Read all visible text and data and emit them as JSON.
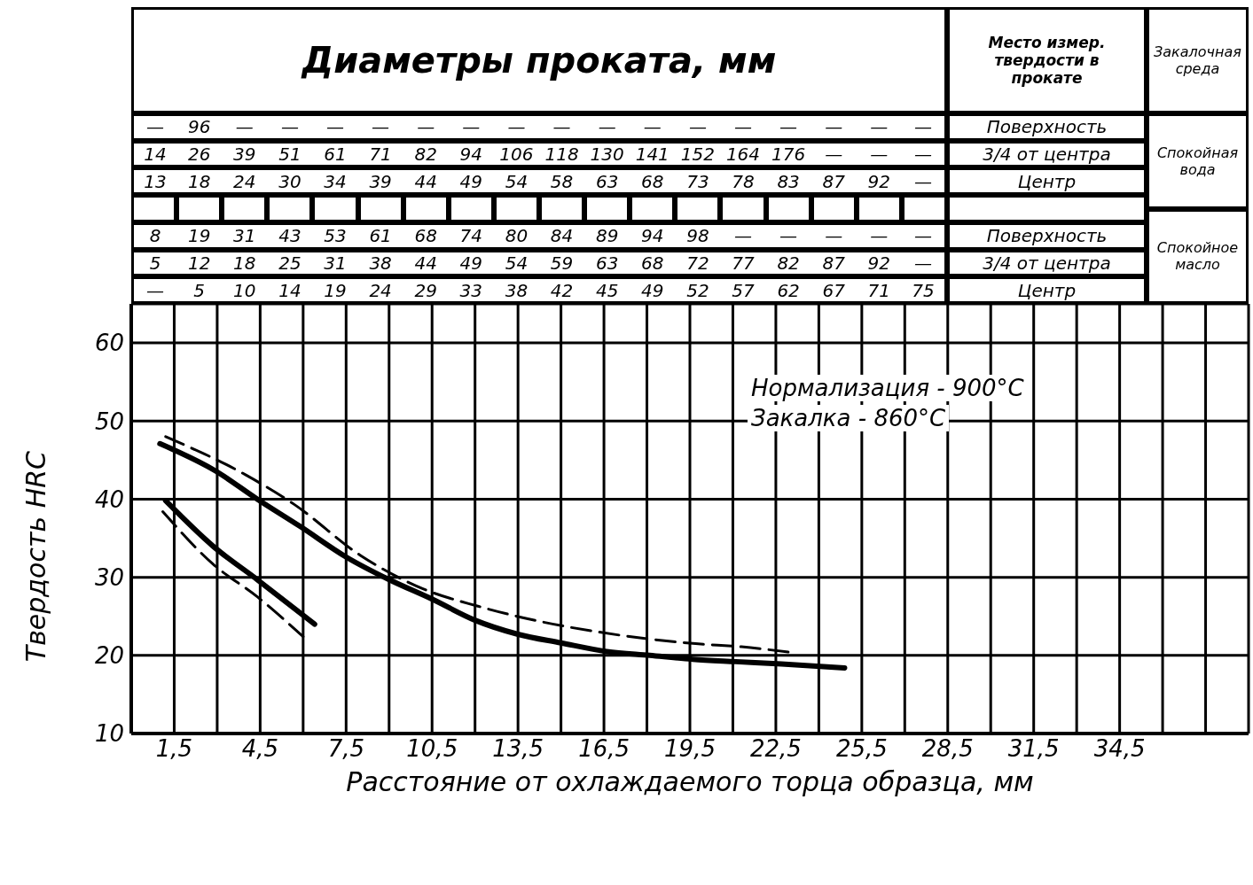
{
  "chart_data": {
    "type": "line",
    "xlabel": "Расстояние от охлаждаемого торца образца, мм",
    "ylabel": "Твердость HRC",
    "xlim": [
      0,
      39
    ],
    "ylim": [
      10,
      65
    ],
    "xticks": [
      {
        "value": 0,
        "label": null
      },
      {
        "value": 1.5,
        "label": "1,5"
      },
      {
        "value": 3,
        "label": null
      },
      {
        "value": 4.5,
        "label": "4,5"
      },
      {
        "value": 6,
        "label": null
      },
      {
        "value": 7.5,
        "label": "7,5"
      },
      {
        "value": 9,
        "label": null
      },
      {
        "value": 10.5,
        "label": "10,5"
      },
      {
        "value": 12,
        "label": null
      },
      {
        "value": 13.5,
        "label": "13,5"
      },
      {
        "value": 15,
        "label": null
      },
      {
        "value": 16.5,
        "label": "16,5"
      },
      {
        "value": 18,
        "label": null
      },
      {
        "value": 19.5,
        "label": "19,5"
      },
      {
        "value": 21,
        "label": null
      },
      {
        "value": 22.5,
        "label": "22,5"
      },
      {
        "value": 24,
        "label": null
      },
      {
        "value": 25.5,
        "label": "25,5"
      },
      {
        "value": 27,
        "label": null
      },
      {
        "value": 28.5,
        "label": "28,5"
      },
      {
        "value": 30,
        "label": null
      },
      {
        "value": 31.5,
        "label": "31,5"
      },
      {
        "value": 33,
        "label": null
      },
      {
        "value": 34.5,
        "label": "34,5"
      },
      {
        "value": 36,
        "label": null
      },
      {
        "value": 37.5,
        "label": null
      },
      {
        "value": 39,
        "label": null
      }
    ],
    "yticks": [
      10,
      20,
      30,
      40,
      50,
      60
    ],
    "grid": true,
    "legend": false,
    "marker": "none",
    "series": [
      {
        "color": "#000000",
        "line_style": "solid",
        "x": [
          1.0,
          2.95,
          4.4,
          5.9,
          7.5,
          9.0,
          10.5,
          12.0,
          13.5,
          15.0,
          16.6,
          18.1,
          19.6,
          21.1,
          22.7,
          24.9
        ],
        "values": [
          47.1,
          43.6,
          40.0,
          36.5,
          32.6,
          29.7,
          27.2,
          24.5,
          22.7,
          21.6,
          20.5,
          20.0,
          19.5,
          19.2,
          18.9,
          18.4
        ]
      },
      {
        "color": "#000000",
        "line_style": "dashed",
        "x": [
          1.2,
          4.0,
          5.7,
          8.0,
          10.2,
          12.1,
          14.2,
          16.3,
          19.7,
          21.3,
          23.2
        ],
        "values": [
          48.0,
          43.1,
          39.3,
          32.8,
          28.5,
          26.3,
          24.4,
          23.0,
          21.5,
          21.1,
          20.3
        ]
      },
      {
        "color": "#000000",
        "line_style": "solid",
        "x": [
          1.2,
          2.85,
          4.4,
          6.4
        ],
        "values": [
          39.8,
          34.0,
          29.7,
          24.0
        ]
      },
      {
        "color": "#000000",
        "line_style": "dashed",
        "x": [
          1.1,
          2.85,
          4.4,
          6.0
        ],
        "values": [
          38.4,
          31.7,
          27.5,
          22.4
        ]
      }
    ],
    "annotations": [
      "Диаметры проката, мм",
      "Место измер. твердости в прокате",
      "Закалочная среда",
      "— 96 — — — — — — — — — — — — — — — —",
      "14 26 39 51 61 71 82 94 106 118 130 141 152 164 176 — — —",
      "13 18 24 30 34 39 44 49 54 58 63 68 73 78 83 87 92 —",
      "8 19 31 43 53 61 68 74 80 84 89 94 98 — — — — —",
      "5 12 18 25 31 38 44 49 54 59 63 68 72 77 82 87 92 —",
      "— 5 10 14 19 24 29 33 38 42 45 49 52 57 62 67 71 75",
      "Поверхность",
      "3/4 от центра",
      "Центр",
      "Поверхность",
      "3/4 от центра",
      "Центр",
      "Спокойная вода",
      "Спокойное масло",
      "Нормализация - 900°C",
      "Закалка - 860°C"
    ]
  }
}
